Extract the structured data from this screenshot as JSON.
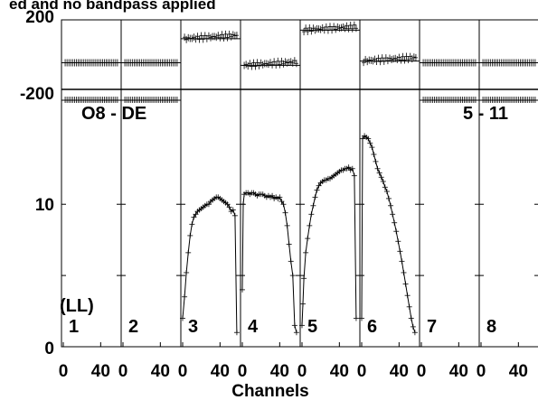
{
  "chart_data": {
    "type": "line",
    "title": "ed and no bandpass applied",
    "xlabel": "Channels",
    "baseline_label": "O8 - DE",
    "time_label": "5 - 11",
    "polarization_label": "(LL)",
    "phase_panel": {
      "ylim": [
        -200,
        200
      ],
      "y_ticks": [
        "200",
        "-200"
      ]
    },
    "amp_panel": {
      "ylim": [
        0,
        18
      ],
      "y_ticks": [
        "10",
        "0"
      ]
    },
    "x_ticks": [
      "0",
      "40"
    ],
    "xlim": [
      0,
      60
    ],
    "channels": [
      {
        "label": "1",
        "has_amp": false,
        "phase": -50
      },
      {
        "label": "2",
        "has_amp": false,
        "phase": -50
      },
      {
        "label": "3",
        "has_amp": true,
        "phase": 90
      },
      {
        "label": "4",
        "has_amp": true,
        "phase": -65
      },
      {
        "label": "5",
        "has_amp": true,
        "phase": 140
      },
      {
        "label": "6",
        "has_amp": true,
        "phase": -40
      },
      {
        "label": "7",
        "has_amp": false,
        "phase": -50
      },
      {
        "label": "8",
        "has_amp": false,
        "phase": -50
      }
    ],
    "amp_shapes": {
      "3": [
        [
          0,
          2
        ],
        [
          2,
          3.5
        ],
        [
          4,
          5.2
        ],
        [
          6,
          6.6
        ],
        [
          8,
          7.8
        ],
        [
          10,
          8.6
        ],
        [
          12,
          9.1
        ],
        [
          14,
          9.3
        ],
        [
          16,
          9.5
        ],
        [
          18,
          9.6
        ],
        [
          20,
          9.7
        ],
        [
          22,
          9.8
        ],
        [
          24,
          9.9
        ],
        [
          26,
          10
        ],
        [
          28,
          10
        ],
        [
          30,
          10.2
        ],
        [
          32,
          10.3
        ],
        [
          34,
          10.4
        ],
        [
          36,
          10.5
        ],
        [
          38,
          10.5
        ],
        [
          40,
          10.4
        ],
        [
          42,
          10.3
        ],
        [
          44,
          10.2
        ],
        [
          46,
          10.1
        ],
        [
          48,
          10.0
        ],
        [
          50,
          9.8
        ],
        [
          52,
          9.5
        ],
        [
          54,
          9.6
        ],
        [
          56,
          9.2
        ],
        [
          58,
          1.0
        ]
      ],
      "4": [
        [
          0,
          4
        ],
        [
          1,
          10.0
        ],
        [
          2,
          10.7
        ],
        [
          4,
          10.8
        ],
        [
          6,
          10.8
        ],
        [
          8,
          10.7
        ],
        [
          10,
          10.8
        ],
        [
          12,
          10.8
        ],
        [
          14,
          10.7
        ],
        [
          16,
          10.6
        ],
        [
          18,
          10.7
        ],
        [
          20,
          10.7
        ],
        [
          22,
          10.7
        ],
        [
          24,
          10.6
        ],
        [
          26,
          10.5
        ],
        [
          28,
          10.6
        ],
        [
          30,
          10.5
        ],
        [
          32,
          10.6
        ],
        [
          34,
          10.4
        ],
        [
          36,
          10.5
        ],
        [
          38,
          10.4
        ],
        [
          40,
          10.5
        ],
        [
          42,
          10.2
        ],
        [
          44,
          10.0
        ],
        [
          46,
          9.4
        ],
        [
          48,
          8.5
        ],
        [
          50,
          7.2
        ],
        [
          52,
          6.0
        ],
        [
          54,
          5.0
        ],
        [
          56,
          1.5
        ],
        [
          58,
          1.0
        ]
      ],
      "5": [
        [
          0,
          1.5
        ],
        [
          1,
          3
        ],
        [
          2,
          4.8
        ],
        [
          4,
          6.6
        ],
        [
          6,
          7.6
        ],
        [
          8,
          8.5
        ],
        [
          10,
          9.3
        ],
        [
          12,
          9.9
        ],
        [
          14,
          10.5
        ],
        [
          16,
          11.0
        ],
        [
          18,
          11.3
        ],
        [
          20,
          11.5
        ],
        [
          22,
          11.6
        ],
        [
          24,
          11.7
        ],
        [
          26,
          11.7
        ],
        [
          28,
          11.8
        ],
        [
          30,
          11.8
        ],
        [
          32,
          11.9
        ],
        [
          34,
          12.0
        ],
        [
          36,
          12.1
        ],
        [
          38,
          12.2
        ],
        [
          40,
          12.3
        ],
        [
          42,
          12.4
        ],
        [
          44,
          12.4
        ],
        [
          46,
          12.5
        ],
        [
          48,
          12.5
        ],
        [
          50,
          12.6
        ],
        [
          52,
          12.4
        ],
        [
          54,
          12.5
        ],
        [
          56,
          12.0
        ],
        [
          58,
          2.0
        ]
      ],
      "6": [
        [
          0,
          2
        ],
        [
          1,
          14.6
        ],
        [
          3,
          14.8
        ],
        [
          5,
          14.7
        ],
        [
          7,
          14.6
        ],
        [
          9,
          14.3
        ],
        [
          11,
          14.0
        ],
        [
          13,
          13.5
        ],
        [
          15,
          13.0
        ],
        [
          17,
          12.5
        ],
        [
          19,
          12.2
        ],
        [
          21,
          11.9
        ],
        [
          23,
          11.6
        ],
        [
          25,
          11.2
        ],
        [
          27,
          10.9
        ],
        [
          29,
          10.4
        ],
        [
          31,
          9.9
        ],
        [
          33,
          9.3
        ],
        [
          35,
          8.7
        ],
        [
          37,
          8.1
        ],
        [
          39,
          7.4
        ],
        [
          41,
          6.7
        ],
        [
          43,
          6.0
        ],
        [
          45,
          5.2
        ],
        [
          47,
          4.4
        ],
        [
          49,
          3.6
        ],
        [
          51,
          2.8
        ],
        [
          53,
          2.0
        ],
        [
          55,
          1.4
        ],
        [
          57,
          1.0
        ]
      ]
    }
  }
}
